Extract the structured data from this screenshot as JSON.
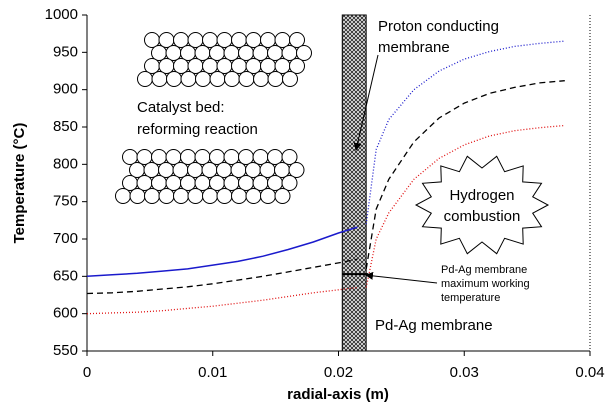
{
  "chart_data": {
    "type": "line",
    "x_label": "radial-axis (m)",
    "y_label": "Temperature (°C)",
    "xlim": [
      0,
      0.04
    ],
    "ylim": [
      550,
      1000
    ],
    "xticks": [
      0,
      0.01,
      0.02,
      0.03,
      0.04
    ],
    "yticks": [
      550,
      600,
      650,
      700,
      750,
      800,
      850,
      900,
      950,
      1000
    ],
    "grid": false,
    "series": [
      {
        "color": "#1a1acc",
        "style": "solid",
        "x": [
          0,
          0.002,
          0.004,
          0.006,
          0.008,
          0.01,
          0.012,
          0.014,
          0.016,
          0.018,
          0.02,
          0.0215
        ],
        "values": [
          650,
          652,
          654,
          657,
          660,
          665,
          670,
          677,
          686,
          696,
          708,
          716
        ]
      },
      {
        "color": "#1a1acc",
        "style": "dot",
        "x": [
          0.0222,
          0.023,
          0.024,
          0.026,
          0.028,
          0.03,
          0.032,
          0.034,
          0.036,
          0.038
        ],
        "values": [
          720,
          820,
          860,
          900,
          925,
          941,
          951,
          958,
          962,
          965
        ]
      },
      {
        "color": "#000000",
        "style": "dash",
        "x": [
          0,
          0.002,
          0.004,
          0.006,
          0.008,
          0.01,
          0.012,
          0.014,
          0.016,
          0.018,
          0.02,
          0.0215
        ],
        "values": [
          627,
          628,
          630,
          633,
          636,
          640,
          645,
          650,
          656,
          662,
          668,
          673
        ]
      },
      {
        "color": "#000000",
        "style": "dash",
        "x": [
          0.0222,
          0.023,
          0.024,
          0.026,
          0.028,
          0.03,
          0.032,
          0.034,
          0.036,
          0.038
        ],
        "values": [
          660,
          740,
          780,
          830,
          862,
          882,
          895,
          903,
          909,
          912
        ]
      },
      {
        "color": "#e01010",
        "style": "dot",
        "x": [
          0,
          0.002,
          0.004,
          0.006,
          0.008,
          0.01,
          0.012,
          0.014,
          0.016,
          0.018,
          0.02,
          0.0215
        ],
        "values": [
          600,
          601,
          602,
          604,
          607,
          610,
          614,
          618,
          623,
          628,
          632,
          635
        ]
      },
      {
        "color": "#e01010",
        "style": "dot",
        "x": [
          0.0222,
          0.023,
          0.024,
          0.026,
          0.028,
          0.03,
          0.032,
          0.034,
          0.036,
          0.038
        ],
        "values": [
          635,
          700,
          735,
          780,
          808,
          826,
          838,
          845,
          849,
          852
        ]
      }
    ],
    "membrane_x": [
      0.0203,
      0.0222
    ],
    "max_working_temperature": 653,
    "annotations": {
      "proton": [
        "Proton conducting",
        "membrane"
      ],
      "catalyst": [
        "Catalyst bed:",
        "reforming reaction"
      ],
      "hydrogen": [
        "Hydrogen",
        "combustion"
      ],
      "pdag_limit": [
        "Pd-Ag membrane",
        "maximum working",
        "temperature"
      ],
      "pdag": "Pd-Ag membrane"
    }
  }
}
